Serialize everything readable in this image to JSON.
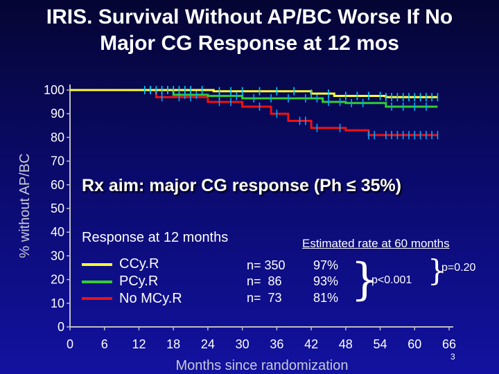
{
  "title": {
    "line1": "IRIS. Survival Without AP/BC Worse If No",
    "line2": "Major CG Response at 12 mos"
  },
  "annotation": "Rx aim: major CG response (Ph ≤ 35%)",
  "legend": {
    "title": "Response at 12 months",
    "estimate_header": "Estimated rate at 60 months",
    "items": [
      {
        "label": "CCy.R",
        "n": "n= 350",
        "rate": "97%",
        "color": "#ffff33"
      },
      {
        "label": "PCy.R",
        "n": "n=  86",
        "rate": "93%",
        "color": "#33cc33"
      },
      {
        "label": "No MCy.R",
        "n": "n=  73",
        "rate": "81%",
        "color": "#ee1111"
      }
    ],
    "p_value_1": "p<0.001",
    "p_value_2": "p=0.20"
  },
  "slide_number": "3",
  "chart_data": {
    "type": "line",
    "title": "",
    "xlabel": "Months since randomization",
    "ylabel": "% without AP/BC",
    "xlim": [
      0,
      66
    ],
    "ylim": [
      0,
      100
    ],
    "xticks": [
      0,
      6,
      12,
      18,
      24,
      30,
      36,
      42,
      48,
      54,
      60,
      66
    ],
    "yticks": [
      0,
      10,
      20,
      30,
      40,
      50,
      60,
      70,
      80,
      90,
      100
    ],
    "grid": false,
    "series": [
      {
        "name": "CCy.R",
        "color": "#ffff33",
        "x": [
          0,
          12,
          25,
          42,
          46,
          55,
          64
        ],
        "y": [
          100,
          100,
          99.5,
          98.5,
          97.5,
          97,
          97
        ],
        "censor_x": [
          13,
          14,
          15,
          16,
          17,
          18,
          19,
          20,
          21,
          23,
          26,
          28,
          30,
          33,
          36,
          39,
          42,
          45,
          48,
          50,
          52,
          54,
          55,
          56,
          57,
          58,
          59,
          60,
          61,
          62,
          63,
          64
        ]
      },
      {
        "name": "PCy.R",
        "color": "#33cc33",
        "x": [
          0,
          12,
          18,
          24,
          30,
          42,
          44,
          48,
          55,
          64
        ],
        "y": [
          100,
          100,
          98,
          97.5,
          96.5,
          96.5,
          95,
          94.5,
          93,
          93
        ],
        "censor_x": [
          14,
          17,
          20,
          22,
          26,
          29,
          32,
          35,
          38,
          41,
          43,
          45,
          47,
          49,
          51,
          56,
          58,
          60,
          62
        ]
      },
      {
        "name": "No MCy.R",
        "color": "#ee1111",
        "x": [
          0,
          12,
          15,
          24,
          30,
          35,
          38,
          42,
          45,
          48,
          52,
          64
        ],
        "y": [
          100,
          100,
          97,
          95,
          93,
          90,
          87,
          84,
          84,
          83,
          81,
          81
        ],
        "censor_x": [
          16,
          19,
          21,
          26,
          28,
          33,
          36,
          40,
          41,
          43,
          47,
          52,
          53,
          55,
          56,
          57,
          58,
          59,
          60,
          61,
          62,
          63,
          64
        ]
      }
    ]
  }
}
